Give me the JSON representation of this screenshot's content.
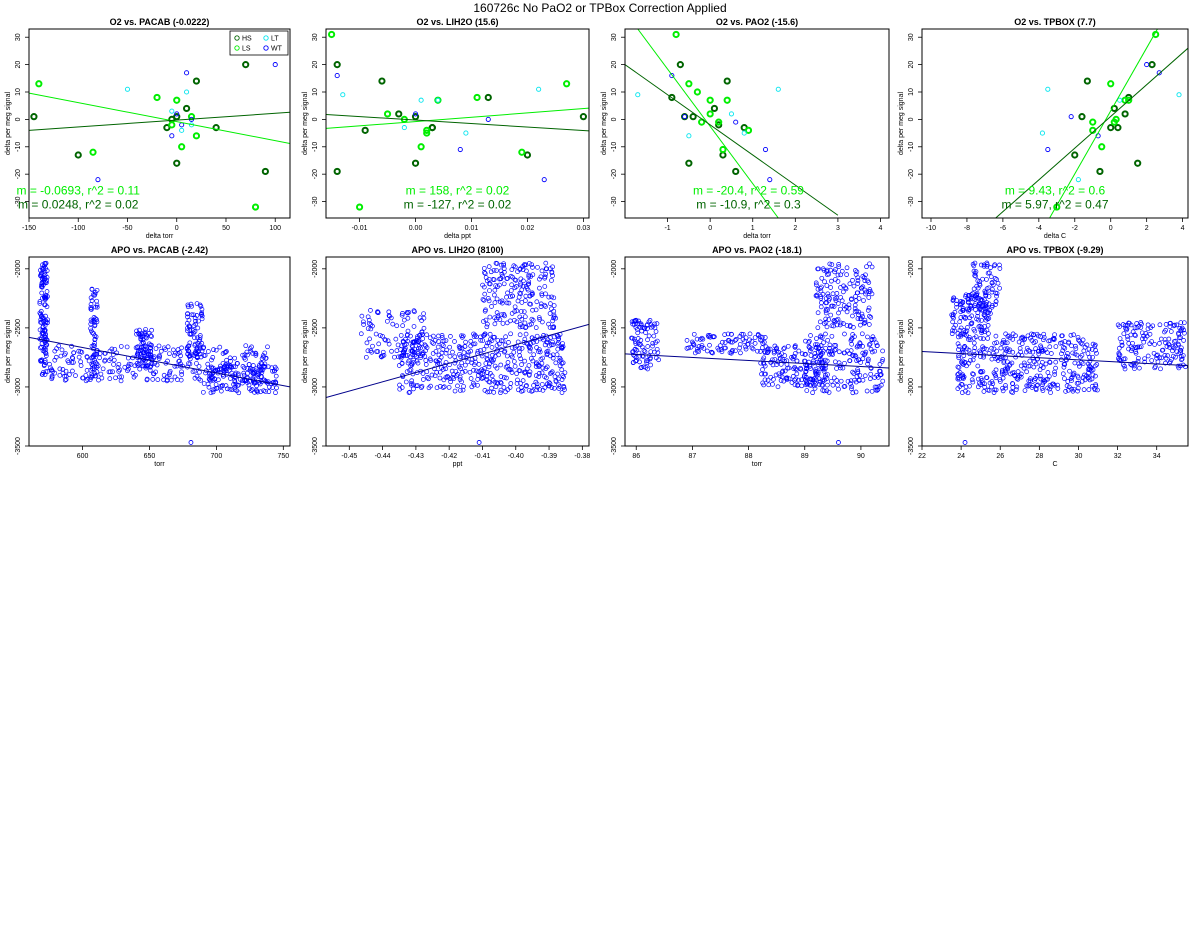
{
  "page": {
    "title": "160726c   No PaO2 or TPBox Correction Applied"
  },
  "colors": {
    "HS": "#006400",
    "LS": "#00ee00",
    "LT": "#00e5ee",
    "WT": "#0000ff",
    "apo": "#0000ff"
  },
  "legend": {
    "entries": [
      {
        "label": "HS",
        "color": "#006400"
      },
      {
        "label": "LT",
        "color": "#00e5ee"
      },
      {
        "label": "LS",
        "color": "#00ee00"
      },
      {
        "label": "WT",
        "color": "#0000ff"
      }
    ],
    "placement": "top-right of first panel"
  },
  "chart_data": [
    {
      "type": "scatter",
      "title": "O2 vs. PACAB (-0.0222)",
      "xlabel": "delta torr",
      "ylabel": "delta per meg signal",
      "xlim": [
        -150,
        115
      ],
      "ylim": [
        -36,
        33
      ],
      "xticks": [
        -150,
        -100,
        -50,
        0,
        50,
        100
      ],
      "yticks": [
        -30,
        -20,
        -10,
        0,
        10,
        20,
        30
      ],
      "series": [
        {
          "name": "HS",
          "x": [
            -145,
            -100,
            20,
            10,
            40,
            90,
            70,
            -5,
            0,
            0,
            -10
          ],
          "y": [
            1,
            -13,
            14,
            4,
            -3,
            -19,
            20,
            0,
            -16,
            1,
            -3
          ]
        },
        {
          "name": "LS",
          "x": [
            -140,
            -85,
            -20,
            0,
            5,
            15,
            80,
            -5,
            20
          ],
          "y": [
            13,
            -12,
            8,
            7,
            -10,
            1,
            -32,
            -2,
            -6
          ]
        },
        {
          "name": "LT",
          "x": [
            -50,
            10,
            5,
            -5,
            15
          ],
          "y": [
            11,
            10,
            -4,
            3,
            -2
          ]
        },
        {
          "name": "WT",
          "x": [
            -80,
            100,
            0,
            5,
            10,
            -5,
            15
          ],
          "y": [
            -22,
            20,
            2,
            -2,
            17,
            -6,
            0
          ]
        }
      ],
      "fits": [
        {
          "series": "LS",
          "x": [
            -150,
            115
          ],
          "y": [
            9.6,
            -8.8
          ]
        },
        {
          "series": "HS",
          "x": [
            -150,
            115
          ],
          "y": [
            -4.0,
            2.6
          ]
        }
      ],
      "annotations": [
        {
          "text": "m = -0.0693, r^2 = 0.11",
          "color": "#00ee00",
          "x": -100,
          "y": -26
        },
        {
          "text": "m = 0.0248, r^2 = 0.02",
          "color": "#006400",
          "x": -100,
          "y": -31
        }
      ],
      "legend": true
    },
    {
      "type": "scatter",
      "title": "O2 vs. LIH2O (15.6)",
      "xlabel": "delta ppt",
      "ylabel": "delta per meg signal",
      "xlim": [
        -0.016,
        0.031
      ],
      "ylim": [
        -36,
        33
      ],
      "xticks": [
        -0.01,
        0.0,
        0.01,
        0.02,
        0.03
      ],
      "xticklabels": [
        "-0.01",
        "0.00",
        "0.01",
        "0.02",
        "0.03"
      ],
      "yticks": [
        -30,
        -20,
        -10,
        0,
        10,
        20,
        30
      ],
      "series": [
        {
          "name": "HS",
          "x": [
            -0.014,
            -0.009,
            -0.006,
            -0.003,
            0.0,
            0.003,
            0.013,
            0.02,
            0.03,
            -0.014,
            0.0,
            0.003
          ],
          "y": [
            20,
            -4,
            14,
            2,
            -16,
            -3,
            8,
            -13,
            1,
            -19,
            1,
            -3
          ]
        },
        {
          "name": "LS",
          "x": [
            -0.015,
            -0.01,
            -0.005,
            -0.002,
            0.002,
            0.004,
            0.011,
            0.019,
            0.027,
            0.001,
            0.002
          ],
          "y": [
            31,
            -32,
            2,
            0,
            -4,
            7,
            8,
            -12,
            13,
            -10,
            -5
          ]
        },
        {
          "name": "LT",
          "x": [
            -0.013,
            0.001,
            0.004,
            0.009,
            0.022,
            -0.002
          ],
          "y": [
            9,
            7,
            7,
            -5,
            11,
            -3
          ]
        },
        {
          "name": "WT",
          "x": [
            -0.014,
            0.008,
            0.013,
            0.023,
            0.0
          ],
          "y": [
            16,
            -11,
            0,
            -22,
            2
          ]
        }
      ],
      "fits": [
        {
          "series": "LS",
          "x": [
            -0.016,
            0.031
          ],
          "y": [
            -3.3,
            4.1
          ]
        },
        {
          "series": "HS",
          "x": [
            -0.016,
            0.031
          ],
          "y": [
            1.8,
            -4.2
          ]
        }
      ],
      "annotations": [
        {
          "text": "m = 158, r^2 = 0.02",
          "color": "#00ee00",
          "x": 0.0075,
          "y": -26
        },
        {
          "text": "m = -127, r^2 = 0.02",
          "color": "#006400",
          "x": 0.0075,
          "y": -31
        }
      ]
    },
    {
      "type": "scatter",
      "title": "O2 vs. PAO2 (-15.6)",
      "xlabel": "delta torr",
      "ylabel": "delta per meg signal",
      "xlim": [
        -2,
        4.2
      ],
      "ylim": [
        -36,
        33
      ],
      "xticks": [
        -1,
        0,
        1,
        2,
        3,
        4
      ],
      "yticks": [
        -30,
        -20,
        -10,
        0,
        10,
        20,
        30
      ],
      "series": [
        {
          "name": "HS",
          "x": [
            -0.7,
            -0.9,
            0.4,
            0.1,
            0.3,
            0.8,
            -0.4,
            -0.5,
            0.2,
            0.6,
            -0.6
          ],
          "y": [
            20,
            8,
            14,
            4,
            -13,
            -3,
            1,
            -16,
            -2,
            -19,
            1
          ]
        },
        {
          "name": "LS",
          "x": [
            -0.8,
            -0.5,
            -0.3,
            0.0,
            0.4,
            0.9,
            0.3,
            0.2,
            -0.2,
            0.0
          ],
          "y": [
            31,
            13,
            10,
            7,
            7,
            -4,
            -11,
            -1,
            -1,
            2
          ]
        },
        {
          "name": "LT",
          "x": [
            -1.7,
            0.8,
            1.6,
            -0.5,
            0.5
          ],
          "y": [
            9,
            -5,
            11,
            -6,
            2
          ]
        },
        {
          "name": "WT",
          "x": [
            -0.9,
            1.3,
            1.4,
            0.6,
            -0.6
          ],
          "y": [
            16,
            -11,
            -22,
            -1,
            1
          ]
        }
      ],
      "fits": [
        {
          "series": "LS",
          "x": [
            -1.7,
            1.6
          ],
          "y": [
            33,
            -36
          ]
        },
        {
          "series": "HS",
          "x": [
            -2,
            3.0
          ],
          "y": [
            20,
            -35
          ]
        }
      ],
      "annotations": [
        {
          "text": "m = -20.4, r^2 = 0.59",
          "color": "#00ee00",
          "x": 0.9,
          "y": -26
        },
        {
          "text": "m = -10.9, r^2 = 0.3",
          "color": "#006400",
          "x": 0.9,
          "y": -31
        }
      ]
    },
    {
      "type": "scatter",
      "title": "O2 vs. TPBOX (7.7)",
      "xlabel": "delta C",
      "ylabel": "delta per meg signal",
      "xlim": [
        -10.5,
        4.3
      ],
      "ylim": [
        -36,
        33
      ],
      "xticks": [
        -10,
        -8,
        -6,
        -4,
        -2,
        0,
        2,
        4
      ],
      "yticks": [
        -30,
        -20,
        -10,
        0,
        10,
        20,
        30
      ],
      "series": [
        {
          "name": "HS",
          "x": [
            2.3,
            -1.3,
            0.2,
            0.8,
            1.5,
            -2.0,
            -0.6,
            0.0,
            0.4,
            -1.6,
            1.0
          ],
          "y": [
            20,
            14,
            4,
            2,
            -16,
            -13,
            -19,
            -3,
            -3,
            1,
            8
          ]
        },
        {
          "name": "LS",
          "x": [
            2.5,
            0.0,
            1.0,
            -0.5,
            -1.0,
            0.3,
            0.2,
            -1.0,
            0.8,
            -3.0
          ],
          "y": [
            31,
            13,
            7,
            -10,
            -4,
            0,
            -1,
            -1,
            7,
            -32
          ]
        },
        {
          "name": "LT",
          "x": [
            -3.5,
            3.8,
            0.5,
            -3.8,
            -1.8
          ],
          "y": [
            11,
            9,
            7,
            -5,
            -22
          ]
        },
        {
          "name": "WT",
          "x": [
            2.0,
            2.7,
            -3.5,
            -2.2,
            -0.7
          ],
          "y": [
            20,
            17,
            -11,
            1,
            -6
          ]
        }
      ],
      "fits": [
        {
          "series": "LS",
          "x": [
            -3.4,
            2.6
          ],
          "y": [
            -36,
            33
          ]
        },
        {
          "series": "HS",
          "x": [
            -6.4,
            4.3
          ],
          "y": [
            -36,
            26
          ]
        }
      ],
      "annotations": [
        {
          "text": "m = 9.43, r^2 = 0.6",
          "color": "#00ee00",
          "x": -3.1,
          "y": -26
        },
        {
          "text": "m = 5.97, r^2 = 0.47",
          "color": "#006400",
          "x": -3.1,
          "y": -31
        }
      ]
    },
    {
      "type": "scatter",
      "title": "APO vs. PACAB (-2.42)",
      "xlabel": "torr",
      "ylabel": "delta per meg signal",
      "xlim": [
        560,
        755
      ],
      "ylim": [
        -3500,
        -1900
      ],
      "xticks": [
        600,
        650,
        700,
        750
      ],
      "yticks": [
        -3500,
        -3000,
        -2500,
        -2000
      ],
      "clusters": [
        {
          "x": [
            568,
            574
          ],
          "y": [
            -2900,
            -1950
          ],
          "n": 130
        },
        {
          "x": [
            575,
            740
          ],
          "y": [
            -2950,
            -2650
          ],
          "n": 300
        },
        {
          "x": [
            606,
            611
          ],
          "y": [
            -2950,
            -2150
          ],
          "n": 60
        },
        {
          "x": [
            640,
            652
          ],
          "y": [
            -2850,
            -2500
          ],
          "n": 80
        },
        {
          "x": [
            678,
            690
          ],
          "y": [
            -2750,
            -2280
          ],
          "n": 70
        },
        {
          "x": [
            690,
            745
          ],
          "y": [
            -3050,
            -2800
          ],
          "n": 140
        }
      ],
      "points": [
        {
          "x": 681,
          "y": -3470
        }
      ],
      "fit": {
        "x": [
          560,
          755
        ],
        "y": [
          -2580,
          -3000
        ]
      }
    },
    {
      "type": "scatter",
      "title": "APO vs. LIH2O (8100)",
      "xlabel": "ppt",
      "ylabel": "delta per meg signal",
      "xlim": [
        -0.457,
        -0.378
      ],
      "ylim": [
        -3500,
        -1900
      ],
      "xticks": [
        -0.45,
        -0.44,
        -0.43,
        -0.42,
        -0.41,
        -0.4,
        -0.39,
        -0.38
      ],
      "xticklabels": [
        "-0.45",
        "-0.44",
        "-0.43",
        "-0.42",
        "-0.41",
        "-0.40",
        "-0.39",
        "-0.38"
      ],
      "yticks": [
        -3500,
        -3000,
        -2500,
        -2000
      ],
      "clusters": [
        {
          "x": [
            -0.447,
            -0.427
          ],
          "y": [
            -2750,
            -2350
          ],
          "n": 90
        },
        {
          "x": [
            -0.435,
            -0.385
          ],
          "y": [
            -3050,
            -2550
          ],
          "n": 480
        },
        {
          "x": [
            -0.41,
            -0.388
          ],
          "y": [
            -2500,
            -1950
          ],
          "n": 200
        }
      ],
      "points": [
        {
          "x": -0.411,
          "y": -3470
        }
      ],
      "fit": {
        "x": [
          -0.457,
          -0.378
        ],
        "y": [
          -3090,
          -2470
        ]
      }
    },
    {
      "type": "scatter",
      "title": "APO vs. PAO2 (-18.1)",
      "xlabel": "torr",
      "ylabel": "delta per meg signal",
      "xlim": [
        85.8,
        90.5
      ],
      "ylim": [
        -3500,
        -1900
      ],
      "xticks": [
        86,
        87,
        88,
        89,
        90
      ],
      "yticks": [
        -3500,
        -3000,
        -2500,
        -2000
      ],
      "clusters": [
        {
          "x": [
            85.9,
            86.4
          ],
          "y": [
            -2850,
            -2420
          ],
          "n": 90
        },
        {
          "x": [
            86.9,
            88.3
          ],
          "y": [
            -2720,
            -2550
          ],
          "n": 90
        },
        {
          "x": [
            88.2,
            89.4
          ],
          "y": [
            -3000,
            -2650
          ],
          "n": 150
        },
        {
          "x": [
            89.0,
            90.4
          ],
          "y": [
            -3050,
            -2550
          ],
          "n": 200
        },
        {
          "x": [
            89.2,
            90.2
          ],
          "y": [
            -2500,
            -1950
          ],
          "n": 160
        }
      ],
      "points": [
        {
          "x": 89.6,
          "y": -3470
        }
      ],
      "fit": {
        "x": [
          85.8,
          90.5
        ],
        "y": [
          -2720,
          -2840
        ]
      }
    },
    {
      "type": "scatter",
      "title": "APO vs. TPBOX (-9.29)",
      "xlabel": "C",
      "ylabel": "delta per meg signal",
      "xlim": [
        22,
        35.6
      ],
      "ylim": [
        -3500,
        -1900
      ],
      "xticks": [
        22,
        24,
        26,
        28,
        30,
        32,
        34
      ],
      "yticks": [
        -3500,
        -3000,
        -2500,
        -2000
      ],
      "clusters": [
        {
          "x": [
            23.5,
            25.5
          ],
          "y": [
            -2550,
            -2200
          ],
          "n": 120
        },
        {
          "x": [
            24.5,
            26.0
          ],
          "y": [
            -2350,
            -1950
          ],
          "n": 70
        },
        {
          "x": [
            23.8,
            31.0
          ],
          "y": [
            -3050,
            -2550
          ],
          "n": 420
        },
        {
          "x": [
            32.0,
            35.5
          ],
          "y": [
            -2850,
            -2450
          ],
          "n": 160
        }
      ],
      "points": [
        {
          "x": 24.2,
          "y": -3470
        }
      ],
      "fit": {
        "x": [
          22,
          35.6
        ],
        "y": [
          -2700,
          -2820
        ]
      }
    }
  ]
}
